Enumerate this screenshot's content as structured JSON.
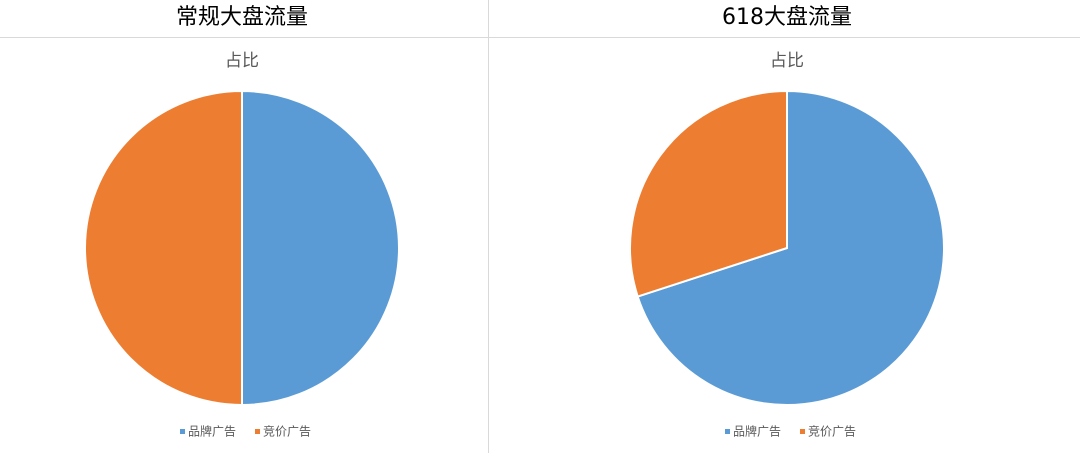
{
  "chart_data": [
    {
      "type": "pie",
      "header": "常规大盘流量",
      "title": "占比",
      "categories": [
        "品牌广告",
        "竞价广告"
      ],
      "values": [
        50,
        50
      ],
      "colors": [
        "#5b9bd5",
        "#ed7d31"
      ]
    },
    {
      "type": "pie",
      "header": "618大盘流量",
      "title": "占比",
      "categories": [
        "品牌广告",
        "竞价广告"
      ],
      "values": [
        70,
        30
      ],
      "colors": [
        "#5b9bd5",
        "#ed7d31"
      ]
    }
  ]
}
